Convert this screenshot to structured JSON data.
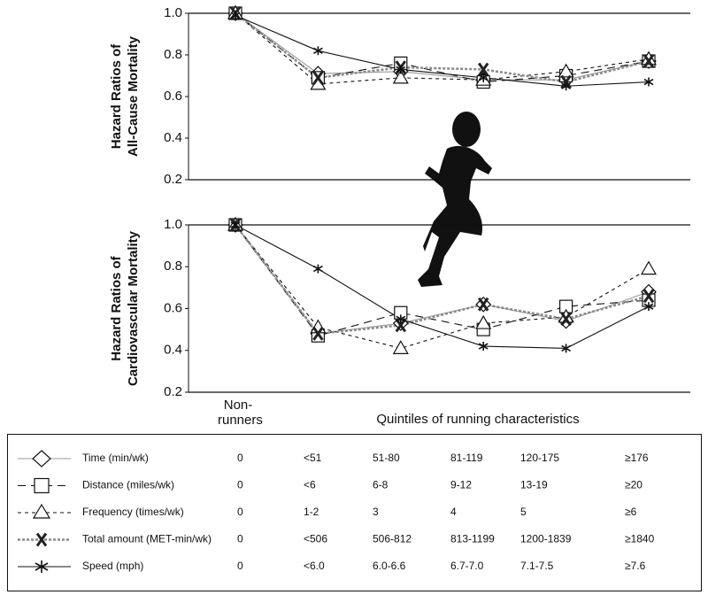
{
  "chart_data": [
    {
      "type": "line",
      "ylabel": [
        "Hazard Ratios of",
        "All-Cause Mortality"
      ],
      "categories": [
        null,
        null,
        null,
        null,
        null,
        null
      ],
      "ylim": [
        0.2,
        1.0
      ],
      "yticks": [
        {
          "value": 1.0,
          "label": "1.0"
        },
        0.8,
        0.6,
        0.4,
        0.2
      ],
      "series": [
        {
          "name": "Time (min/wk)",
          "color": "#9a9a9a",
          "marker": "diamond",
          "dash": "solid",
          "values": [
            1.0,
            0.71,
            0.72,
            0.68,
            0.68,
            0.77
          ]
        },
        {
          "name": "Distance (miles/wk)",
          "color": "#111111",
          "marker": "square",
          "dash": "long",
          "values": [
            1.0,
            0.69,
            0.76,
            0.67,
            0.7,
            0.77
          ]
        },
        {
          "name": "Frequency (times/wk)",
          "color": "#111111",
          "marker": "triangle",
          "dash": "short",
          "values": [
            1.0,
            0.66,
            0.69,
            0.68,
            0.72,
            0.78
          ]
        },
        {
          "name": "Total amount (MET-min/wk)",
          "color": "#8a8a8a",
          "marker": "x",
          "dash": "dotted",
          "values": [
            1.0,
            0.69,
            0.74,
            0.73,
            0.67,
            0.77
          ]
        },
        {
          "name": "Speed (mph)",
          "color": "#111111",
          "marker": "asterisk",
          "dash": "solid",
          "values": [
            0.99,
            0.82,
            0.73,
            0.69,
            0.65,
            0.67
          ]
        }
      ]
    },
    {
      "type": "line",
      "ylabel": [
        "Hazard Ratios of",
        "Cardiovascular Mortality"
      ],
      "categories": [
        "Non-runners",
        null,
        null,
        null,
        null,
        null
      ],
      "xlabel": "Quintiles of running characteristics",
      "ylim": [
        0.2,
        1.0
      ],
      "yticks": [
        {
          "value": 1.0,
          "label": "1.0"
        },
        0.8,
        0.6,
        0.4,
        0.2
      ],
      "series": [
        {
          "color": "#9a9a9a",
          "marker": "diamond",
          "dash": "solid",
          "values": [
            1.0,
            0.48,
            0.53,
            0.62,
            0.54,
            0.68
          ]
        },
        {
          "color": "#111111",
          "marker": "square",
          "dash": "long",
          "values": [
            1.0,
            0.47,
            0.58,
            0.5,
            0.61,
            0.64
          ]
        },
        {
          "color": "#111111",
          "marker": "triangle",
          "dash": "short",
          "values": [
            1.0,
            0.51,
            0.41,
            0.53,
            0.56,
            0.79
          ]
        },
        {
          "color": "#8a8a8a",
          "marker": "x",
          "dash": "dotted",
          "values": [
            1.0,
            0.48,
            0.52,
            0.62,
            0.55,
            0.66
          ]
        },
        {
          "color": "#111111",
          "marker": "asterisk",
          "dash": "solid",
          "values": [
            1.0,
            0.79,
            0.55,
            0.42,
            0.41,
            0.61
          ]
        }
      ]
    }
  ],
  "legend": {
    "rows": [
      [
        "0",
        "<51",
        "51-80",
        "81-119",
        "120-175",
        "≥176"
      ],
      [
        "0",
        "<6",
        "6-8",
        "9-12",
        "13-19",
        "≥20"
      ],
      [
        "0",
        "1-2",
        "3",
        "4",
        "5",
        "≥6"
      ],
      [
        "0",
        "<506",
        "506-812",
        "813-1199",
        "1200-1839",
        "≥1840"
      ],
      [
        "0",
        "<6.0",
        "6.0-6.6",
        "6.7-7.0",
        "7.1-7.5",
        "≥7.6"
      ]
    ]
  }
}
